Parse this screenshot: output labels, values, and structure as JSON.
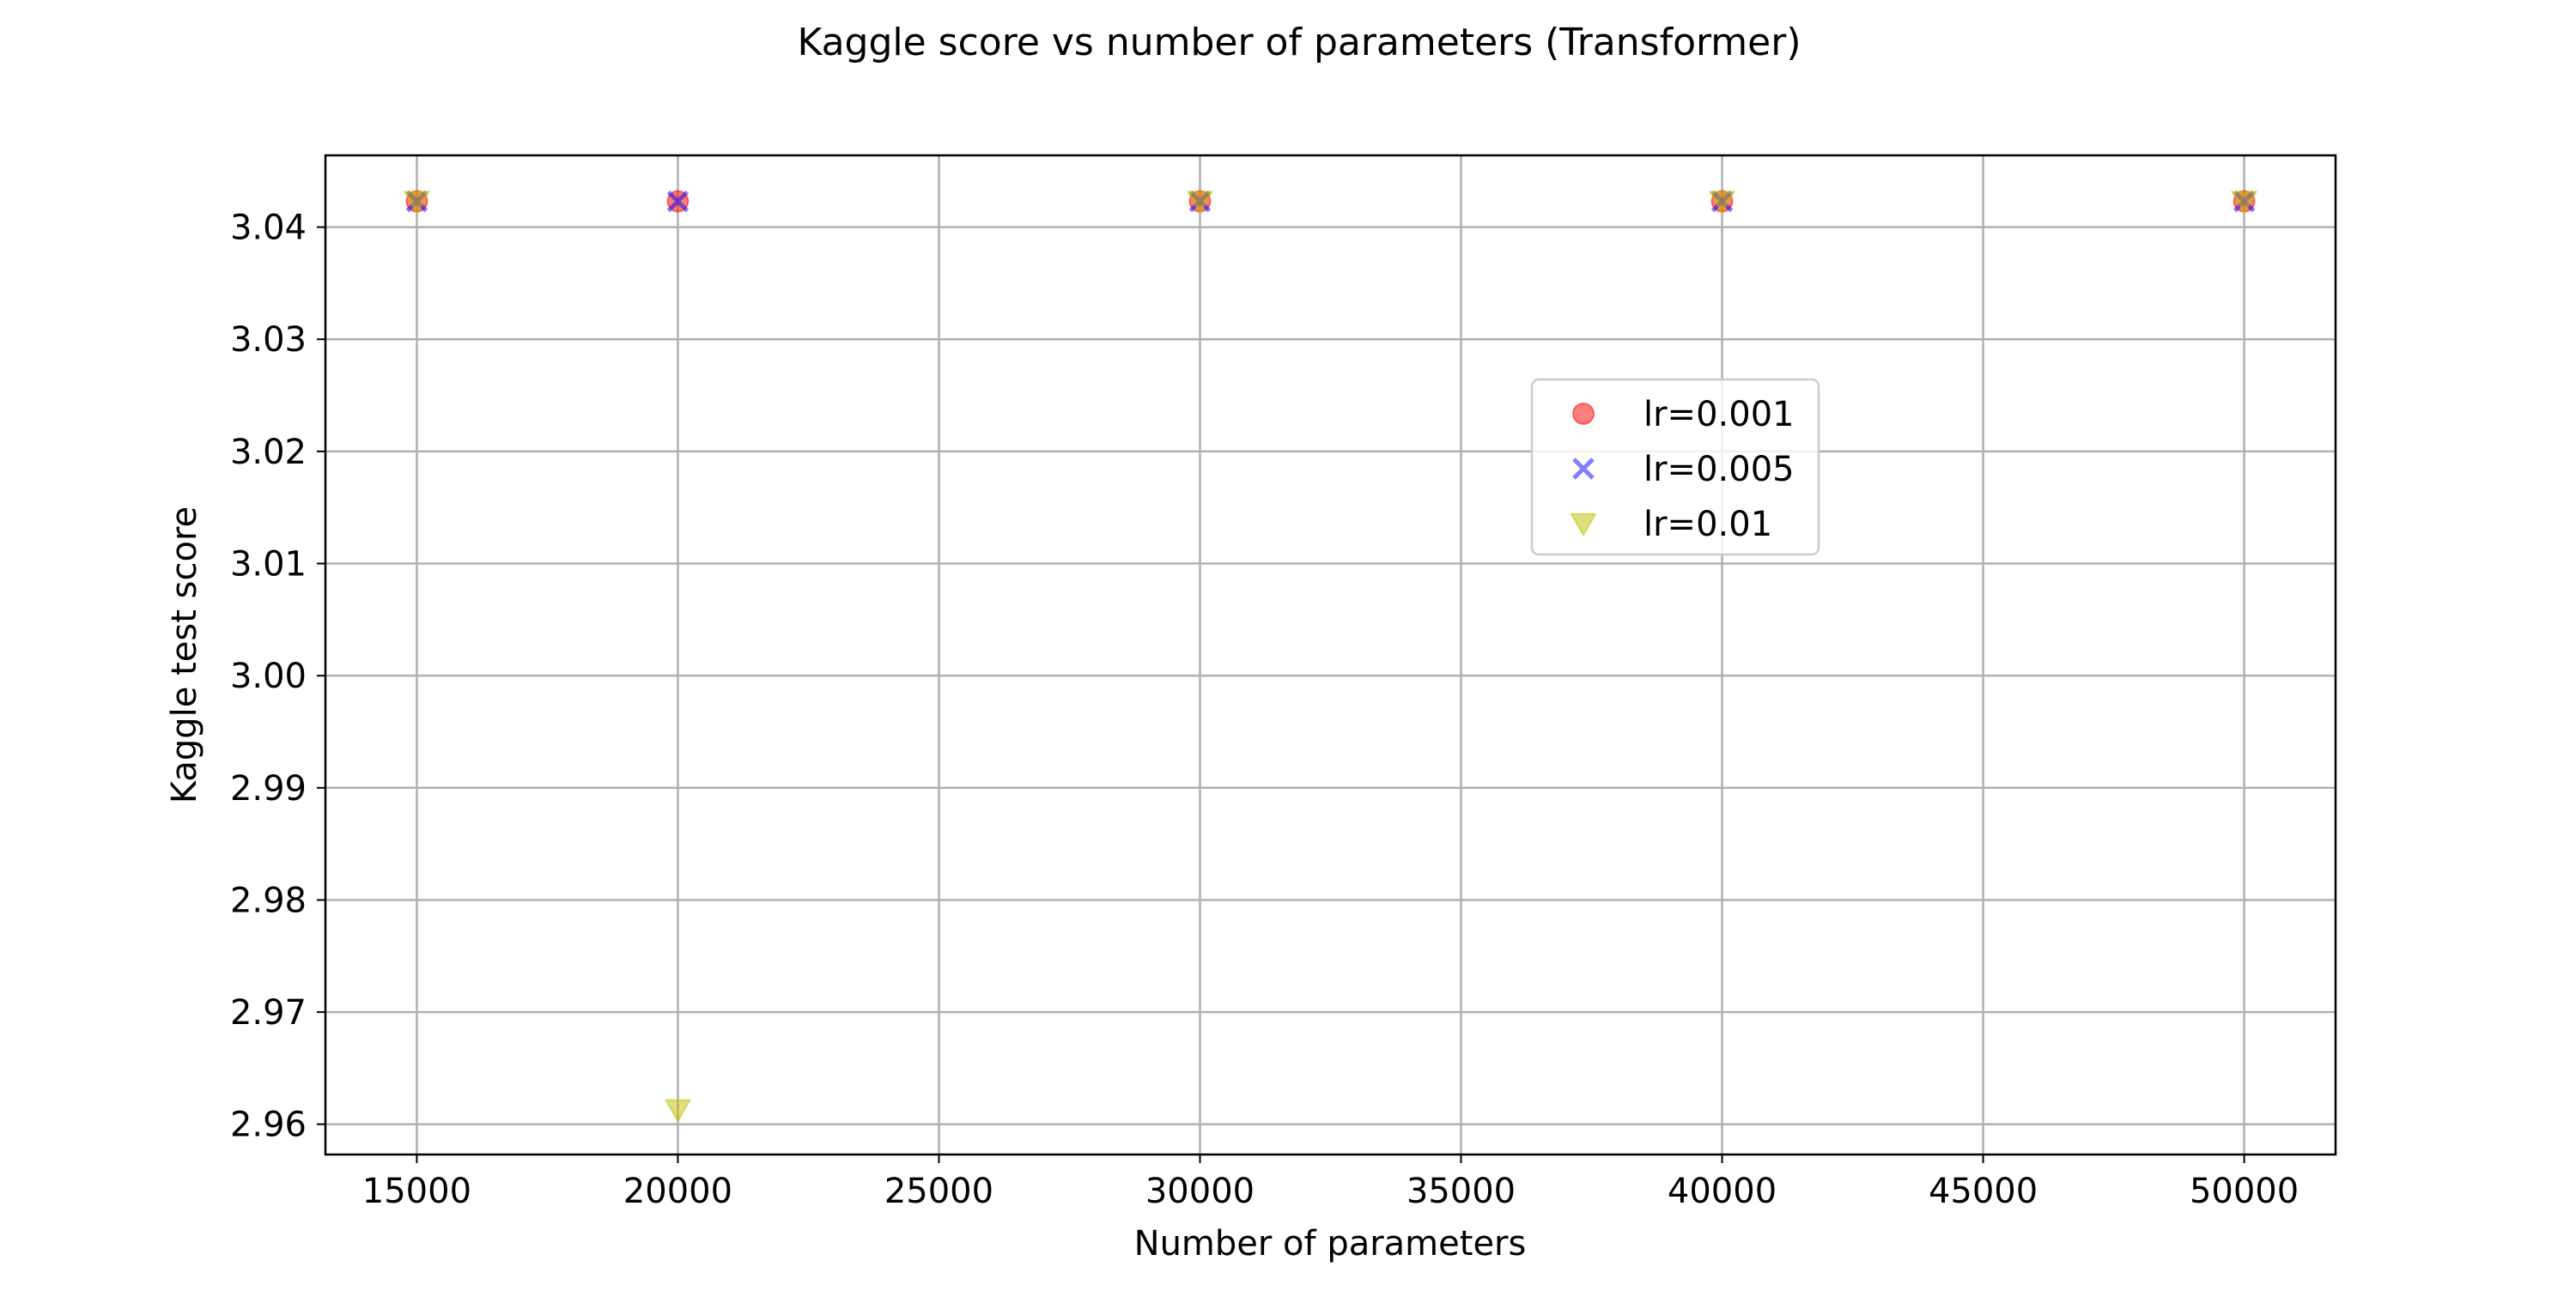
{
  "chart_data": {
    "type": "scatter",
    "title": "Kaggle score vs number of parameters (Transformer)",
    "xlabel": "Number of parameters",
    "ylabel": "Kaggle test score",
    "xlim": [
      13250,
      51750
    ],
    "ylim": [
      2.9573,
      3.0464
    ],
    "xticks": [
      15000,
      20000,
      25000,
      30000,
      35000,
      40000,
      45000,
      50000
    ],
    "yticks": [
      2.96,
      2.97,
      2.98,
      2.99,
      3.0,
      3.01,
      3.02,
      3.03,
      3.04
    ],
    "xtick_labels": [
      "15000",
      "20000",
      "25000",
      "30000",
      "35000",
      "40000",
      "45000",
      "50000"
    ],
    "ytick_labels": [
      "2.96",
      "2.97",
      "2.98",
      "2.99",
      "3.00",
      "3.01",
      "3.02",
      "3.03",
      "3.04"
    ],
    "grid": true,
    "legend": {
      "placement": "center-right"
    },
    "series": [
      {
        "name": "lr=0.001",
        "marker": "circle",
        "color": "#ff0000",
        "alpha": 0.5,
        "x": [
          15000,
          20000,
          30000,
          40000,
          50000
        ],
        "y": [
          3.0423,
          3.0423,
          3.0423,
          3.0423,
          3.0423
        ]
      },
      {
        "name": "lr=0.005",
        "marker": "x",
        "color": "#0000ff",
        "alpha": 0.5,
        "x": [
          15000,
          20000,
          30000,
          40000,
          50000
        ],
        "y": [
          3.0423,
          3.0423,
          3.0423,
          3.0423,
          3.0423
        ]
      },
      {
        "name": "lr=0.01",
        "marker": "triangle-down",
        "color": "#bfbf00",
        "alpha": 0.5,
        "x": [
          15000,
          20000,
          30000,
          40000,
          50000
        ],
        "y": [
          3.0423,
          2.9613,
          3.0423,
          3.0423,
          3.0423
        ]
      }
    ]
  }
}
